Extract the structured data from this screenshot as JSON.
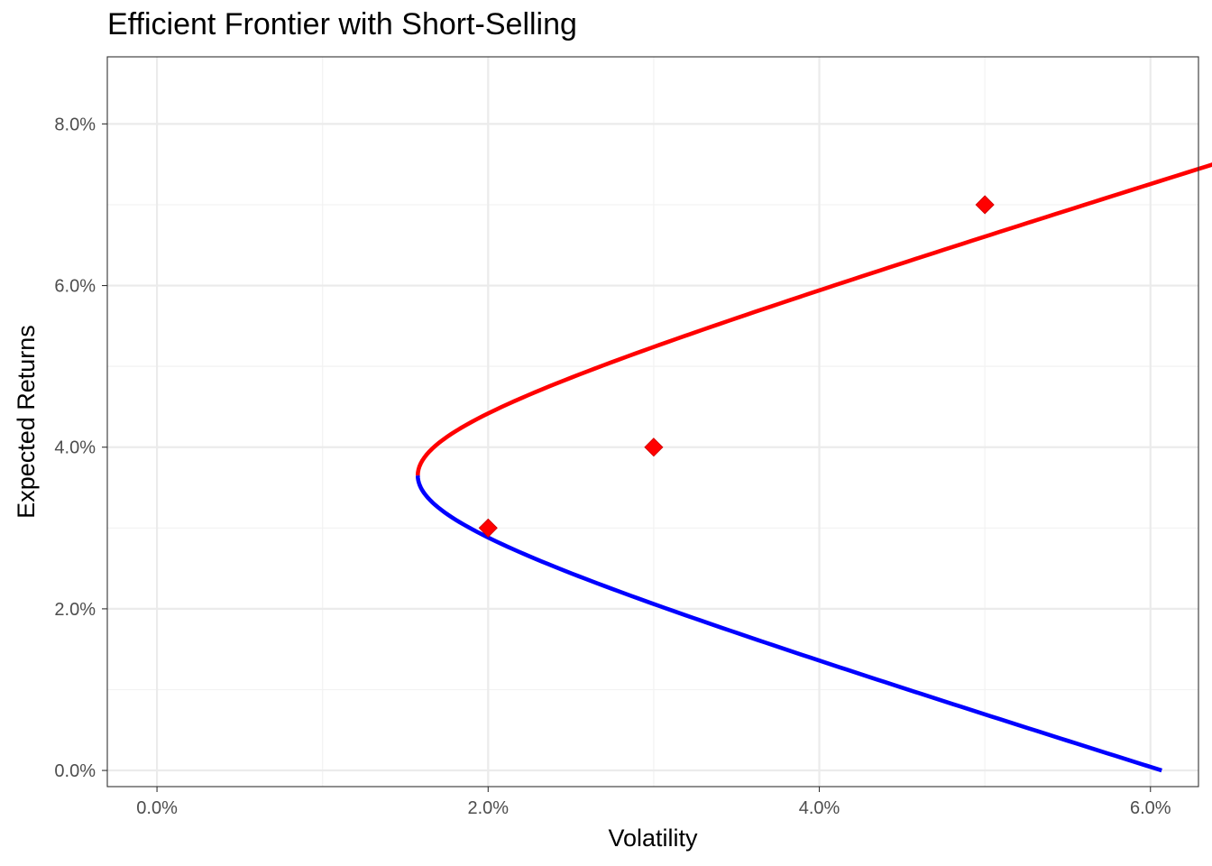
{
  "chart_data": {
    "type": "line",
    "title": "Efficient Frontier with Short-Selling",
    "xlabel": "Volatility",
    "ylabel": "Expected Returns",
    "xlim": [
      -0.003,
      0.0629
    ],
    "ylim": [
      -0.002,
      0.0883
    ],
    "x_ticks": [
      0,
      0.02,
      0.04,
      0.06
    ],
    "x_tick_labels": [
      "0.0%",
      "2.0%",
      "4.0%",
      "6.0%"
    ],
    "y_ticks": [
      0,
      0.02,
      0.04,
      0.06,
      0.08
    ],
    "y_tick_labels": [
      "0.0%",
      "2.0%",
      "4.0%",
      "6.0%",
      "8.0%"
    ],
    "grid": true,
    "legend": "none",
    "frontier": {
      "min_variance_return": 0.0365,
      "min_volatility": 0.01575,
      "shape_k": 1.6055,
      "efficient_return_range": [
        0.0365,
        0.0806
      ],
      "inefficient_return_range": [
        0.0,
        0.0365
      ]
    },
    "series": [
      {
        "type": "line",
        "color": "#ff0000",
        "x": [
          0.01575,
          0.01637,
          0.01811,
          0.02065,
          0.02366,
          0.02693,
          0.03037,
          0.03391,
          0.03752,
          0.04117,
          0.04486,
          0.04857,
          0.05229,
          0.05603,
          0.05977,
          0.06001
        ],
        "y": [
          0.0365,
          0.039,
          0.0415,
          0.044,
          0.0465,
          0.049,
          0.0515,
          0.054,
          0.0565,
          0.059,
          0.0615,
          0.064,
          0.0665,
          0.069,
          0.0715,
          0.0806
        ]
      },
      {
        "type": "line",
        "color": "#0000ff",
        "x": [
          0.01575,
          0.01637,
          0.01811,
          0.02065,
          0.02366,
          0.02693,
          0.03037,
          0.03391,
          0.03752,
          0.04117,
          0.04486,
          0.04857,
          0.05055
        ],
        "y": [
          0.0365,
          0.034,
          0.0315,
          0.029,
          0.0265,
          0.024,
          0.0215,
          0.019,
          0.0165,
          0.014,
          0.0115,
          0.009,
          0.0
        ]
      },
      {
        "type": "scatter",
        "marker": "diamond",
        "color": "#ff0000",
        "x": [
          0.02,
          0.03,
          0.05
        ],
        "y": [
          0.03,
          0.04,
          0.07
        ]
      }
    ]
  }
}
